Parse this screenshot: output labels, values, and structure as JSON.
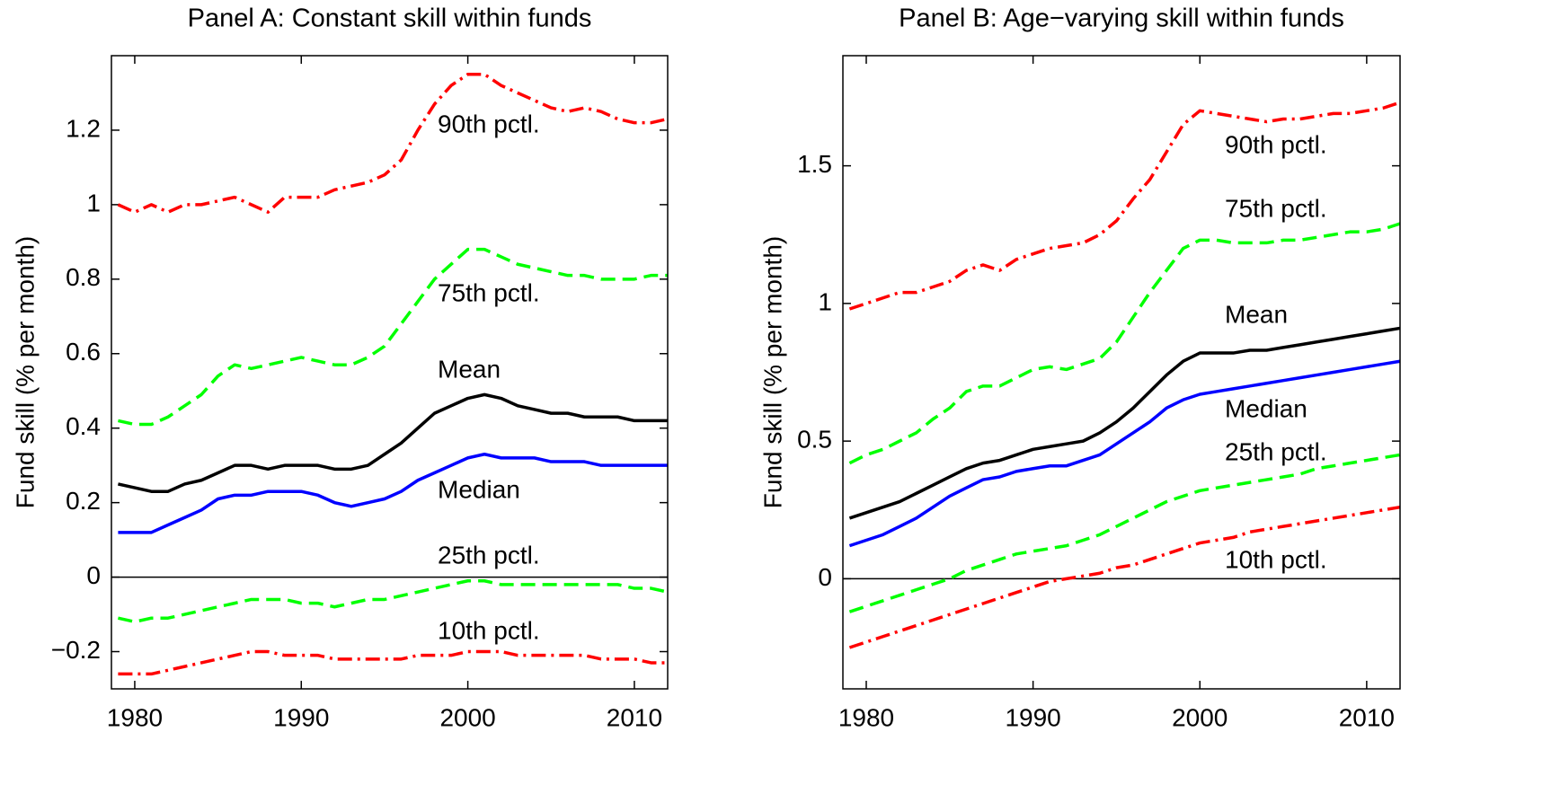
{
  "chart_data": [
    {
      "type": "line",
      "title": "Panel A: Constant skill within funds",
      "ylabel": "Fund skill (% per month)",
      "x": [
        1979,
        1980,
        1981,
        1982,
        1983,
        1984,
        1985,
        1986,
        1987,
        1988,
        1989,
        1990,
        1991,
        1992,
        1993,
        1994,
        1995,
        1996,
        1997,
        1998,
        1999,
        2000,
        2001,
        2002,
        2003,
        2004,
        2005,
        2006,
        2007,
        2008,
        2009,
        2010,
        2011,
        2012
      ],
      "xlim": [
        1978.6,
        2012
      ],
      "xticks": [
        1980,
        1990,
        2000,
        2010
      ],
      "ylim": [
        -0.3,
        1.4
      ],
      "yticks": [
        {
          "value": -0.2,
          "label": "−0.2"
        },
        0,
        0.2,
        0.4,
        0.6,
        0.8,
        1,
        1.2
      ],
      "zeroline": true,
      "series": [
        {
          "name": "90th pctl.",
          "color": "#ff0000",
          "dash": "dashdot",
          "values": [
            1.0,
            0.98,
            1.0,
            0.98,
            1.0,
            1.0,
            1.01,
            1.02,
            1.0,
            0.98,
            1.02,
            1.02,
            1.02,
            1.04,
            1.05,
            1.06,
            1.08,
            1.12,
            1.2,
            1.27,
            1.32,
            1.35,
            1.35,
            1.32,
            1.3,
            1.28,
            1.26,
            1.25,
            1.26,
            1.25,
            1.23,
            1.22,
            1.22,
            1.23
          ]
        },
        {
          "name": "75th pctl.",
          "color": "#00ff00",
          "dash": "dashed",
          "values": [
            0.42,
            0.41,
            0.41,
            0.43,
            0.46,
            0.49,
            0.54,
            0.57,
            0.56,
            0.57,
            0.58,
            0.59,
            0.58,
            0.57,
            0.57,
            0.59,
            0.62,
            0.68,
            0.74,
            0.8,
            0.84,
            0.88,
            0.88,
            0.86,
            0.84,
            0.83,
            0.82,
            0.81,
            0.81,
            0.8,
            0.8,
            0.8,
            0.81,
            0.81
          ]
        },
        {
          "name": "Mean",
          "color": "#000000",
          "dash": "solid",
          "values": [
            0.25,
            0.24,
            0.23,
            0.23,
            0.25,
            0.26,
            0.28,
            0.3,
            0.3,
            0.29,
            0.3,
            0.3,
            0.3,
            0.29,
            0.29,
            0.3,
            0.33,
            0.36,
            0.4,
            0.44,
            0.46,
            0.48,
            0.49,
            0.48,
            0.46,
            0.45,
            0.44,
            0.44,
            0.43,
            0.43,
            0.43,
            0.42,
            0.42,
            0.42
          ]
        },
        {
          "name": "Median",
          "color": "#0000ff",
          "dash": "solid",
          "values": [
            0.12,
            0.12,
            0.12,
            0.14,
            0.16,
            0.18,
            0.21,
            0.22,
            0.22,
            0.23,
            0.23,
            0.23,
            0.22,
            0.2,
            0.19,
            0.2,
            0.21,
            0.23,
            0.26,
            0.28,
            0.3,
            0.32,
            0.33,
            0.32,
            0.32,
            0.32,
            0.31,
            0.31,
            0.31,
            0.3,
            0.3,
            0.3,
            0.3,
            0.3
          ]
        },
        {
          "name": "25th pctl.",
          "color": "#00ff00",
          "dash": "dashed",
          "values": [
            -0.11,
            -0.12,
            -0.11,
            -0.11,
            -0.1,
            -0.09,
            -0.08,
            -0.07,
            -0.06,
            -0.06,
            -0.06,
            -0.07,
            -0.07,
            -0.08,
            -0.07,
            -0.06,
            -0.06,
            -0.05,
            -0.04,
            -0.03,
            -0.02,
            -0.01,
            -0.01,
            -0.02,
            -0.02,
            -0.02,
            -0.02,
            -0.02,
            -0.02,
            -0.02,
            -0.02,
            -0.03,
            -0.03,
            -0.04
          ]
        },
        {
          "name": "10th pctl.",
          "color": "#ff0000",
          "dash": "dashdot",
          "values": [
            -0.26,
            -0.26,
            -0.26,
            -0.25,
            -0.24,
            -0.23,
            -0.22,
            -0.21,
            -0.2,
            -0.2,
            -0.21,
            -0.21,
            -0.21,
            -0.22,
            -0.22,
            -0.22,
            -0.22,
            -0.22,
            -0.21,
            -0.21,
            -0.21,
            -0.2,
            -0.2,
            -0.2,
            -0.21,
            -0.21,
            -0.21,
            -0.21,
            -0.21,
            -0.22,
            -0.22,
            -0.22,
            -0.23,
            -0.23
          ]
        }
      ]
    },
    {
      "type": "line",
      "title": "Panel B: Age−varying skill within funds",
      "ylabel": "Fund skill (% per month)",
      "x": [
        1979,
        1980,
        1981,
        1982,
        1983,
        1984,
        1985,
        1986,
        1987,
        1988,
        1989,
        1990,
        1991,
        1992,
        1993,
        1994,
        1995,
        1996,
        1997,
        1998,
        1999,
        2000,
        2001,
        2002,
        2003,
        2004,
        2005,
        2006,
        2007,
        2008,
        2009,
        2010,
        2011,
        2012
      ],
      "xlim": [
        1978.6,
        2012
      ],
      "xticks": [
        1980,
        1990,
        2000,
        2010
      ],
      "ylim": [
        -0.4,
        1.9
      ],
      "yticks": [
        0,
        0.5,
        1,
        1.5
      ],
      "zeroline": true,
      "series": [
        {
          "name": "90th pctl.",
          "color": "#ff0000",
          "dash": "dashdot",
          "values": [
            0.98,
            1.0,
            1.02,
            1.04,
            1.04,
            1.06,
            1.08,
            1.12,
            1.14,
            1.12,
            1.16,
            1.18,
            1.2,
            1.21,
            1.22,
            1.25,
            1.3,
            1.38,
            1.45,
            1.55,
            1.65,
            1.7,
            1.69,
            1.68,
            1.67,
            1.66,
            1.67,
            1.67,
            1.68,
            1.69,
            1.69,
            1.7,
            1.71,
            1.73
          ]
        },
        {
          "name": "75th pctl.",
          "color": "#00ff00",
          "dash": "dashed",
          "values": [
            0.42,
            0.45,
            0.47,
            0.5,
            0.53,
            0.58,
            0.62,
            0.68,
            0.7,
            0.7,
            0.73,
            0.76,
            0.77,
            0.76,
            0.78,
            0.8,
            0.86,
            0.95,
            1.04,
            1.12,
            1.2,
            1.23,
            1.23,
            1.22,
            1.22,
            1.22,
            1.23,
            1.23,
            1.24,
            1.25,
            1.26,
            1.26,
            1.27,
            1.29
          ]
        },
        {
          "name": "Mean",
          "color": "#000000",
          "dash": "solid",
          "values": [
            0.22,
            0.24,
            0.26,
            0.28,
            0.31,
            0.34,
            0.37,
            0.4,
            0.42,
            0.43,
            0.45,
            0.47,
            0.48,
            0.49,
            0.5,
            0.53,
            0.57,
            0.62,
            0.68,
            0.74,
            0.79,
            0.82,
            0.82,
            0.82,
            0.83,
            0.83,
            0.84,
            0.85,
            0.86,
            0.87,
            0.88,
            0.89,
            0.9,
            0.91
          ]
        },
        {
          "name": "Median",
          "color": "#0000ff",
          "dash": "solid",
          "values": [
            0.12,
            0.14,
            0.16,
            0.19,
            0.22,
            0.26,
            0.3,
            0.33,
            0.36,
            0.37,
            0.39,
            0.4,
            0.41,
            0.41,
            0.43,
            0.45,
            0.49,
            0.53,
            0.57,
            0.62,
            0.65,
            0.67,
            0.68,
            0.69,
            0.7,
            0.71,
            0.72,
            0.73,
            0.74,
            0.75,
            0.76,
            0.77,
            0.78,
            0.79
          ]
        },
        {
          "name": "25th pctl.",
          "color": "#00ff00",
          "dash": "dashed",
          "values": [
            -0.12,
            -0.1,
            -0.08,
            -0.06,
            -0.04,
            -0.02,
            0.0,
            0.03,
            0.05,
            0.07,
            0.09,
            0.1,
            0.11,
            0.12,
            0.14,
            0.16,
            0.19,
            0.22,
            0.25,
            0.28,
            0.3,
            0.32,
            0.33,
            0.34,
            0.35,
            0.36,
            0.37,
            0.38,
            0.4,
            0.41,
            0.42,
            0.43,
            0.44,
            0.45
          ]
        },
        {
          "name": "10th pctl.",
          "color": "#ff0000",
          "dash": "dashdot",
          "values": [
            -0.25,
            -0.23,
            -0.21,
            -0.19,
            -0.17,
            -0.15,
            -0.13,
            -0.11,
            -0.09,
            -0.07,
            -0.05,
            -0.03,
            -0.01,
            0.0,
            0.01,
            0.02,
            0.04,
            0.05,
            0.07,
            0.09,
            0.11,
            0.13,
            0.14,
            0.15,
            0.17,
            0.18,
            0.19,
            0.2,
            0.21,
            0.22,
            0.23,
            0.24,
            0.25,
            0.26
          ]
        }
      ]
    }
  ]
}
